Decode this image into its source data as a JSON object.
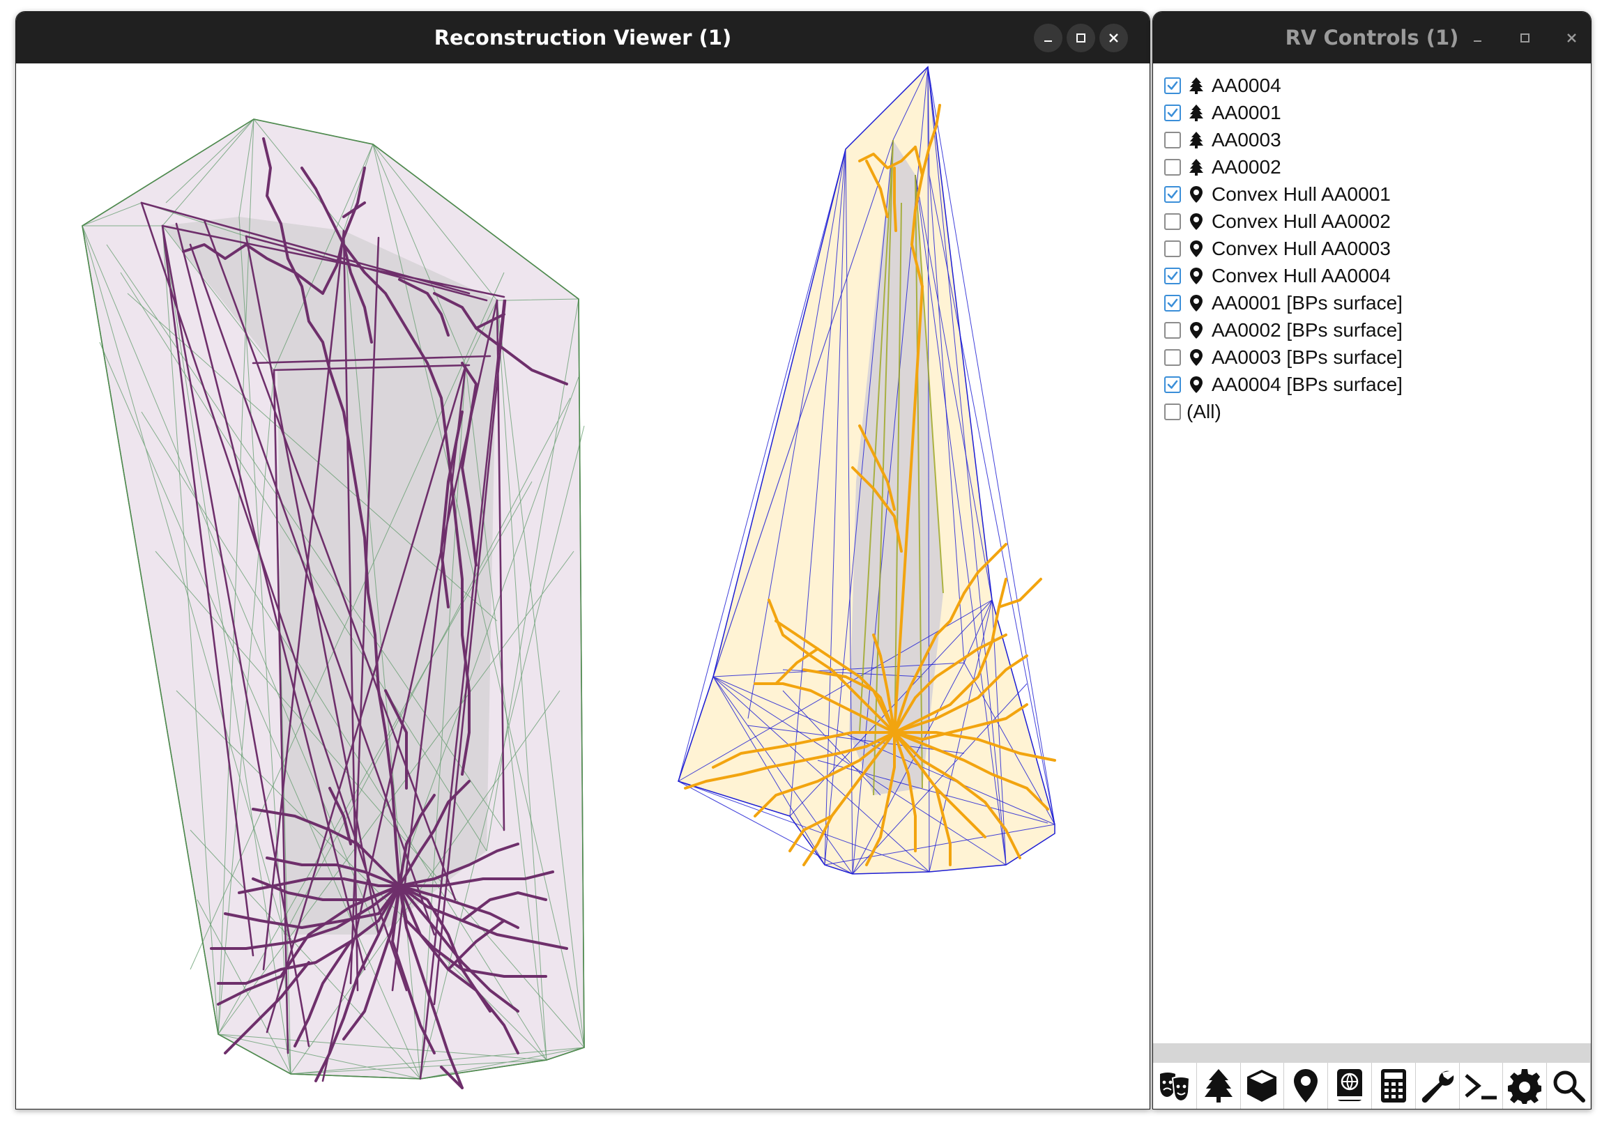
{
  "viewer": {
    "title": "Reconstruction Viewer (1)",
    "minimize_icon": "minimize-icon",
    "maximize_icon": "maximize-icon",
    "close_icon": "close-icon"
  },
  "controls": {
    "title": "RV Controls (1)",
    "items": [
      {
        "label": "AA0004",
        "checked": true,
        "icon": "tree-icon"
      },
      {
        "label": "AA0001",
        "checked": true,
        "icon": "tree-icon"
      },
      {
        "label": "AA0003",
        "checked": false,
        "icon": "tree-icon"
      },
      {
        "label": "AA0002",
        "checked": false,
        "icon": "tree-icon"
      },
      {
        "label": "Convex Hull AA0001",
        "checked": true,
        "icon": "map-pin-icon"
      },
      {
        "label": "Convex Hull AA0002",
        "checked": false,
        "icon": "map-pin-icon"
      },
      {
        "label": "Convex Hull AA0003",
        "checked": false,
        "icon": "map-pin-icon"
      },
      {
        "label": "Convex Hull AA0004",
        "checked": true,
        "icon": "map-pin-icon"
      },
      {
        "label": "AA0001 [BPs surface]",
        "checked": true,
        "icon": "map-pin-icon"
      },
      {
        "label": "AA0002 [BPs surface]",
        "checked": false,
        "icon": "map-pin-icon"
      },
      {
        "label": "AA0003 [BPs surface]",
        "checked": false,
        "icon": "map-pin-icon"
      },
      {
        "label": "AA0004 [BPs surface]",
        "checked": true,
        "icon": "map-pin-icon"
      },
      {
        "label": "(All)",
        "checked": false,
        "icon": ""
      }
    ],
    "toolbar": [
      "masks-icon",
      "tree-icon",
      "cube-icon",
      "map-pin-icon",
      "atlas-icon",
      "calculator-icon",
      "wrench-icon",
      "terminal-icon",
      "gear-icon",
      "search-icon"
    ]
  },
  "colors": {
    "titlebar": "#202020",
    "neuron_purple": "#6e2f6b",
    "hull_purple_fill": "#eadfea",
    "hull_green_edge": "#4f8a4f",
    "neuron_orange": "#f2a40f",
    "hull_yellow_fill": "#fff2d2",
    "hull_blue_edge": "#1f1fd4",
    "checkbox_accent": "#3a8ed8"
  }
}
